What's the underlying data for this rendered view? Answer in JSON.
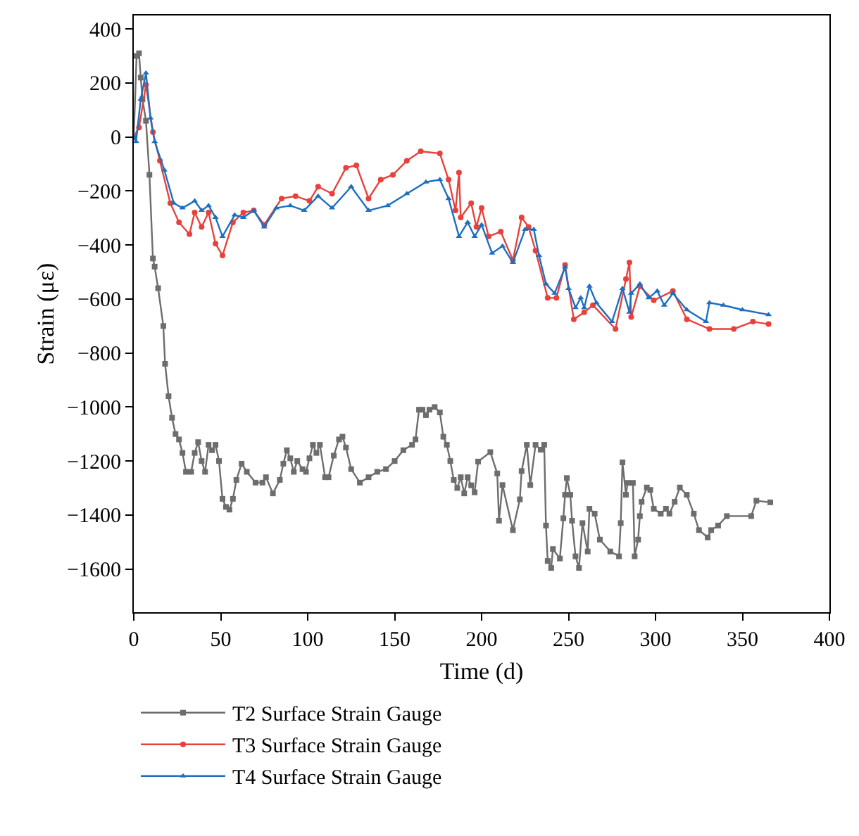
{
  "chart_data": {
    "type": "line",
    "xlabel": "Time (d)",
    "ylabel": "Strain (με)",
    "xlim": [
      0,
      400
    ],
    "xticks": [
      0,
      50,
      100,
      150,
      200,
      250,
      300,
      350,
      400
    ],
    "ylim": [
      -1760,
      450
    ],
    "yticks": [
      -1600,
      -1400,
      -1200,
      -1000,
      -800,
      -600,
      -400,
      -200,
      0,
      200,
      400
    ],
    "grid": false,
    "legend": "bottom",
    "line_style": "solid",
    "series": [
      {
        "name": "T2 Surface Strain Gauge",
        "color": "#6d6d6d",
        "marker": "square",
        "x": [
          0,
          1.6,
          3,
          4,
          5,
          7,
          9,
          11,
          12,
          14,
          17,
          18,
          20,
          22,
          24,
          26,
          28,
          30,
          33,
          35,
          37,
          39,
          41,
          43,
          45,
          47,
          49,
          51,
          53,
          55,
          57,
          59,
          62,
          65,
          70,
          74,
          76,
          80,
          84,
          86,
          88,
          90,
          92,
          94,
          97,
          99,
          101,
          103,
          105,
          107,
          110,
          112,
          115,
          118,
          120,
          122,
          125,
          130,
          135,
          140,
          145,
          150,
          155,
          160,
          162,
          164,
          166,
          168,
          170,
          173,
          176,
          178,
          180,
          182,
          184,
          186,
          188,
          190,
          192,
          194,
          196,
          198,
          205,
          209,
          210,
          212,
          218,
          222,
          223,
          226,
          228,
          231,
          234,
          236,
          237,
          238,
          240,
          241,
          245,
          247,
          248,
          249,
          251,
          252,
          254,
          256,
          258,
          261,
          262,
          265,
          268,
          274,
          279,
          280,
          281,
          283,
          284,
          287,
          288,
          290,
          291,
          292,
          295,
          297,
          299,
          303,
          306,
          308,
          311,
          314,
          318,
          322,
          325,
          330,
          332,
          336,
          341,
          355,
          358,
          366
        ],
        "values": [
          0,
          300,
          310,
          220,
          140,
          60,
          -140,
          -450,
          -480,
          -560,
          -700,
          -840,
          -960,
          -1040,
          -1100,
          -1120,
          -1170,
          -1240,
          -1240,
          -1170,
          -1130,
          -1200,
          -1240,
          -1140,
          -1160,
          -1140,
          -1200,
          -1340,
          -1370,
          -1380,
          -1340,
          -1270,
          -1210,
          -1240,
          -1280,
          -1280,
          -1260,
          -1320,
          -1270,
          -1210,
          -1160,
          -1190,
          -1240,
          -1200,
          -1230,
          -1240,
          -1190,
          -1140,
          -1170,
          -1140,
          -1260,
          -1260,
          -1180,
          -1120,
          -1110,
          -1150,
          -1230,
          -1280,
          -1260,
          -1240,
          -1230,
          -1200,
          -1160,
          -1140,
          -1120,
          -1010,
          -1010,
          -1030,
          -1010,
          -1000,
          -1020,
          -1110,
          -1140,
          -1200,
          -1270,
          -1300,
          -1260,
          -1320,
          -1260,
          -1290,
          -1316,
          -1202,
          -1167,
          -1246,
          -1421,
          -1289,
          -1456,
          -1342,
          -1237,
          -1140,
          -1289,
          -1140,
          -1158,
          -1140,
          -1439,
          -1570,
          -1596,
          -1526,
          -1561,
          -1412,
          -1325,
          -1263,
          -1325,
          -1421,
          -1553,
          -1596,
          -1430,
          -1535,
          -1377,
          -1395,
          -1491,
          -1535,
          -1553,
          -1430,
          -1205,
          -1325,
          -1281,
          -1281,
          -1553,
          -1491,
          -1404,
          -1351,
          -1298,
          -1307,
          -1377,
          -1395,
          -1377,
          -1395,
          -1351,
          -1298,
          -1325,
          -1395,
          -1456,
          -1483,
          -1456,
          -1439,
          -1404,
          -1404,
          -1347,
          -1353
        ]
      },
      {
        "name": "T3 Surface Strain Gauge",
        "color": "#e8413c",
        "marker": "circle",
        "x": [
          0,
          3,
          7,
          11,
          15,
          21,
          26,
          32,
          35,
          39,
          43,
          47,
          51,
          57,
          63,
          69,
          75,
          85,
          93,
          101,
          106,
          114,
          122,
          128,
          135,
          142,
          149,
          157,
          165,
          176,
          181,
          185,
          187,
          188,
          194,
          197,
          200,
          204,
          211,
          218,
          223,
          227,
          231,
          238,
          243,
          248,
          253,
          259,
          264,
          277,
          283,
          285,
          286,
          291,
          299,
          310,
          318,
          331,
          345,
          356,
          365
        ],
        "values": [
          0,
          35,
          193,
          18,
          -88,
          -245,
          -316,
          -360,
          -280,
          -333,
          -280,
          -395,
          -439,
          -316,
          -280,
          -272,
          -325,
          -228,
          -219,
          -237,
          -184,
          -210,
          -114,
          -105,
          -228,
          -158,
          -140,
          -88,
          -53,
          -61,
          -158,
          -272,
          -132,
          -298,
          -245,
          -333,
          -263,
          -368,
          -351,
          -456,
          -298,
          -333,
          -421,
          -596,
          -596,
          -474,
          -675,
          -649,
          -623,
          -711,
          -526,
          -465,
          -667,
          -553,
          -605,
          -570,
          -675,
          -711,
          -711,
          -684,
          -693
        ]
      },
      {
        "name": "T4 Surface Strain Gauge",
        "color": "#1f6fbf",
        "marker": "triangle",
        "x": [
          0,
          1.3,
          4,
          7,
          9.6,
          12,
          17.6,
          23,
          28,
          35,
          39,
          43,
          47,
          51,
          58,
          63,
          69,
          75,
          82,
          90,
          98,
          106,
          114,
          125,
          135,
          146,
          157,
          168,
          176,
          181,
          187,
          192,
          196,
          200,
          206,
          212,
          218,
          225,
          230,
          233,
          237,
          242,
          248,
          250,
          254,
          257,
          259,
          262,
          266,
          275,
          281,
          285,
          286,
          291,
          296,
          301,
          305,
          310,
          318,
          329,
          331,
          339,
          350,
          365
        ],
        "values": [
          0,
          -17,
          140,
          237,
          70,
          -17,
          -123,
          -245,
          -263,
          -237,
          -272,
          -254,
          -298,
          -368,
          -289,
          -298,
          -272,
          -333,
          -263,
          -254,
          -272,
          -219,
          -263,
          -184,
          -272,
          -254,
          -210,
          -167,
          -158,
          -228,
          -368,
          -316,
          -368,
          -325,
          -430,
          -404,
          -465,
          -342,
          -342,
          -439,
          -544,
          -579,
          -482,
          -561,
          -632,
          -596,
          -632,
          -553,
          -614,
          -684,
          -561,
          -649,
          -579,
          -544,
          -596,
          -570,
          -623,
          -579,
          -640,
          -684,
          -614,
          -623,
          -640,
          -658
        ]
      }
    ]
  }
}
